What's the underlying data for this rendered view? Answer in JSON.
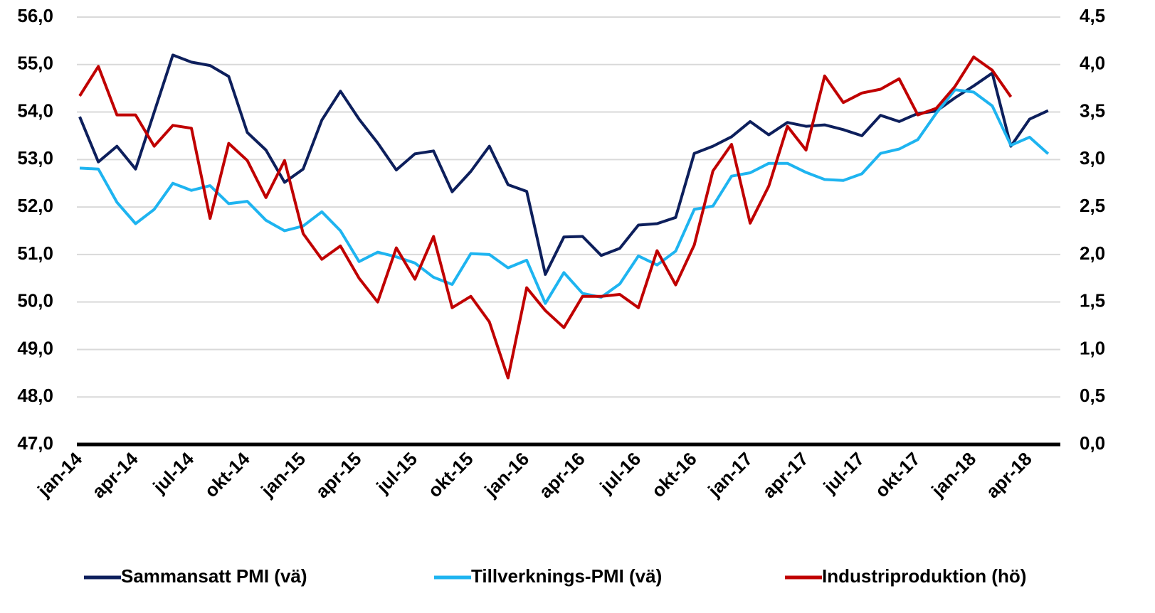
{
  "chart_data": {
    "type": "line",
    "categories": [
      "jan-14",
      null,
      null,
      "apr-14",
      null,
      null,
      "jul-14",
      null,
      null,
      "okt-14",
      null,
      null,
      "jan-15",
      null,
      null,
      "apr-15",
      null,
      null,
      "jul-15",
      null,
      null,
      "okt-15",
      null,
      null,
      "jan-16",
      null,
      null,
      "apr-16",
      null,
      null,
      "jul-16",
      null,
      null,
      "okt-16",
      null,
      null,
      "jan-17",
      null,
      null,
      "apr-17",
      null,
      null,
      "jul-17",
      null,
      null,
      "okt-17",
      null,
      null,
      "jan-18",
      null,
      null,
      "apr-18",
      null
    ],
    "series": [
      {
        "name": "Sammansatt PMI (vä)",
        "color": "#0d1f5c",
        "values": [
          53.9,
          52.95,
          53.28,
          52.8,
          54.0,
          55.2,
          55.05,
          54.98,
          54.75,
          53.57,
          53.2,
          52.52,
          52.8,
          53.83,
          54.44,
          53.85,
          53.35,
          52.78,
          53.12,
          53.18,
          52.32,
          52.75,
          53.28,
          52.47,
          52.33,
          50.58,
          51.37,
          51.38,
          50.98,
          51.13,
          51.62,
          51.65,
          51.78,
          53.13,
          53.28,
          53.48,
          53.8,
          53.52,
          53.78,
          53.7,
          53.73,
          53.63,
          53.5,
          53.93,
          53.8,
          53.97,
          54.02,
          54.3,
          54.55,
          54.82,
          53.28,
          53.85,
          54.03
        ]
      },
      {
        "name": "Tillverknings-PMI (vä)",
        "color": "#1eb4f0",
        "values": [
          52.82,
          52.8,
          52.1,
          51.65,
          51.95,
          52.5,
          52.35,
          52.45,
          52.07,
          52.12,
          51.72,
          51.5,
          51.6,
          51.9,
          51.5,
          50.85,
          51.05,
          50.95,
          50.82,
          50.52,
          50.37,
          51.02,
          51.0,
          50.72,
          50.88,
          49.97,
          50.62,
          50.18,
          50.1,
          50.38,
          50.97,
          50.78,
          51.07,
          51.95,
          52.02,
          52.65,
          52.72,
          52.92,
          52.92,
          52.73,
          52.58,
          52.56,
          52.7,
          53.13,
          53.22,
          53.42,
          53.98,
          54.47,
          54.42,
          54.13,
          53.3,
          53.47,
          53.12
        ]
      },
      {
        "name": "Industriproduktion (hö)",
        "color": "#c00000",
        "axis": "y2",
        "values": [
          3.67,
          3.98,
          3.47,
          3.47,
          3.14,
          3.36,
          3.33,
          2.38,
          3.17,
          2.99,
          2.6,
          2.99,
          2.22,
          1.95,
          2.09,
          1.75,
          1.5,
          2.07,
          1.74,
          2.19,
          1.44,
          1.56,
          1.29,
          0.7,
          1.65,
          1.41,
          1.23,
          1.56,
          1.56,
          1.58,
          1.44,
          2.04,
          1.68,
          2.1,
          2.88,
          3.16,
          2.33,
          2.72,
          3.35,
          3.1,
          3.88,
          3.6,
          3.7,
          3.74,
          3.85,
          3.47,
          3.54,
          3.77,
          4.08,
          3.94,
          3.66,
          null,
          null
        ]
      }
    ],
    "ylim": [
      47,
      56
    ],
    "yticks": [
      {
        "value": 47,
        "label": "47,0"
      },
      {
        "value": 48,
        "label": "48,0"
      },
      {
        "value": 49,
        "label": "49,0"
      },
      {
        "value": 50,
        "label": "50,0"
      },
      {
        "value": 51,
        "label": "51,0"
      },
      {
        "value": 52,
        "label": "52,0"
      },
      {
        "value": 53,
        "label": "53,0"
      },
      {
        "value": 54,
        "label": "54,0"
      },
      {
        "value": 55,
        "label": "55,0"
      },
      {
        "value": 56,
        "label": "56,0"
      }
    ],
    "y2lim": [
      0,
      4.5
    ],
    "y2ticks": [
      {
        "value": 0,
        "label": "0,0"
      },
      {
        "value": 0.5,
        "label": "0,5"
      },
      {
        "value": 1,
        "label": "1,0"
      },
      {
        "value": 1.5,
        "label": "1,5"
      },
      {
        "value": 2,
        "label": "2,0"
      },
      {
        "value": 2.5,
        "label": "2,5"
      },
      {
        "value": 3,
        "label": "3,0"
      },
      {
        "value": 3.5,
        "label": "3,5"
      },
      {
        "value": 4,
        "label": "4,0"
      },
      {
        "value": 4.5,
        "label": "4,5"
      }
    ],
    "grid": true,
    "legend": "bottom"
  }
}
